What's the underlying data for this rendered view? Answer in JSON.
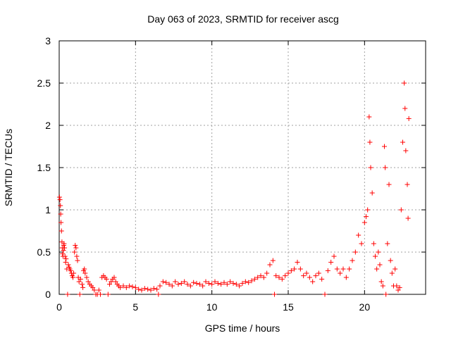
{
  "chart_data": {
    "type": "scatter",
    "title": "Day 063 of 2023, SRMTID for receiver ascg",
    "xlabel": "GPS time / hours",
    "ylabel": "SRMTID / TECUs",
    "xlim": [
      0,
      24
    ],
    "ylim": [
      0,
      3
    ],
    "xticks": [
      0,
      5,
      10,
      15,
      20
    ],
    "yticks": [
      0,
      0.5,
      1,
      1.5,
      2,
      2.5,
      3
    ],
    "ytick_labels": [
      "0",
      "0.5",
      "1",
      "1.5",
      "2",
      "2.5",
      "3"
    ],
    "xtick_labels": [
      "0",
      "5",
      "10",
      "15",
      "20"
    ],
    "grid": true,
    "marker": "+",
    "color": "#ff0000",
    "series": [
      {
        "name": "SRMTID",
        "points": [
          [
            0.02,
            1.15
          ],
          [
            0.05,
            1.12
          ],
          [
            0.08,
            1.05
          ],
          [
            0.1,
            0.95
          ],
          [
            0.12,
            0.85
          ],
          [
            0.15,
            0.75
          ],
          [
            0.18,
            0.62
          ],
          [
            0.2,
            0.55
          ],
          [
            0.22,
            0.48
          ],
          [
            0.25,
            0.45
          ],
          [
            0.28,
            0.52
          ],
          [
            0.3,
            0.58
          ],
          [
            0.32,
            0.6
          ],
          [
            0.35,
            0.55
          ],
          [
            0.38,
            0.45
          ],
          [
            0.42,
            0.38
          ],
          [
            0.45,
            0.42
          ],
          [
            0.5,
            0.3
          ],
          [
            0.55,
            0.0
          ],
          [
            0.6,
            0.35
          ],
          [
            0.65,
            0.32
          ],
          [
            0.7,
            0.3
          ],
          [
            0.75,
            0.28
          ],
          [
            0.8,
            0.25
          ],
          [
            0.85,
            0.22
          ],
          [
            0.9,
            0.2
          ],
          [
            0.95,
            0.25
          ],
          [
            1.0,
            0.5
          ],
          [
            1.05,
            0.58
          ],
          [
            1.1,
            0.55
          ],
          [
            1.15,
            0.45
          ],
          [
            1.2,
            0.4
          ],
          [
            1.25,
            0.2
          ],
          [
            1.3,
            0.15
          ],
          [
            1.35,
            0.0
          ],
          [
            1.4,
            0.18
          ],
          [
            1.5,
            0.12
          ],
          [
            1.55,
            0.08
          ],
          [
            1.6,
            0.28
          ],
          [
            1.65,
            0.3
          ],
          [
            1.7,
            0.25
          ],
          [
            1.8,
            0.2
          ],
          [
            1.9,
            0.15
          ],
          [
            2.0,
            0.12
          ],
          [
            2.1,
            0.1
          ],
          [
            2.2,
            0.08
          ],
          [
            2.3,
            0.05
          ],
          [
            2.4,
            0.0
          ],
          [
            2.5,
            0.0
          ],
          [
            2.6,
            0.05
          ],
          [
            2.7,
            0.0
          ],
          [
            2.8,
            0.2
          ],
          [
            2.9,
            0.22
          ],
          [
            3.0,
            0.2
          ],
          [
            3.1,
            0.18
          ],
          [
            3.2,
            0.0
          ],
          [
            3.3,
            0.12
          ],
          [
            3.4,
            0.15
          ],
          [
            3.5,
            0.18
          ],
          [
            3.6,
            0.2
          ],
          [
            3.7,
            0.15
          ],
          [
            3.8,
            0.12
          ],
          [
            3.9,
            0.1
          ],
          [
            4.0,
            0.08
          ],
          [
            4.2,
            0.1
          ],
          [
            4.4,
            0.08
          ],
          [
            4.6,
            0.1
          ],
          [
            4.8,
            0.09
          ],
          [
            5.0,
            0.08
          ],
          [
            5.2,
            0.06
          ],
          [
            5.4,
            0.05
          ],
          [
            5.6,
            0.07
          ],
          [
            5.8,
            0.06
          ],
          [
            6.0,
            0.05
          ],
          [
            6.2,
            0.07
          ],
          [
            6.4,
            0.06
          ],
          [
            6.5,
            0.0
          ],
          [
            6.6,
            0.1
          ],
          [
            6.8,
            0.15
          ],
          [
            7.0,
            0.14
          ],
          [
            7.2,
            0.12
          ],
          [
            7.4,
            0.1
          ],
          [
            7.6,
            0.15
          ],
          [
            7.8,
            0.12
          ],
          [
            8.0,
            0.13
          ],
          [
            8.2,
            0.15
          ],
          [
            8.4,
            0.12
          ],
          [
            8.6,
            0.1
          ],
          [
            8.8,
            0.14
          ],
          [
            9.0,
            0.13
          ],
          [
            9.2,
            0.12
          ],
          [
            9.4,
            0.1
          ],
          [
            9.6,
            0.15
          ],
          [
            9.8,
            0.13
          ],
          [
            10.0,
            0.12
          ],
          [
            10.2,
            0.15
          ],
          [
            10.4,
            0.13
          ],
          [
            10.6,
            0.12
          ],
          [
            10.8,
            0.14
          ],
          [
            11.0,
            0.12
          ],
          [
            11.2,
            0.15
          ],
          [
            11.4,
            0.13
          ],
          [
            11.6,
            0.12
          ],
          [
            11.8,
            0.1
          ],
          [
            12.0,
            0.13
          ],
          [
            12.2,
            0.15
          ],
          [
            12.4,
            0.14
          ],
          [
            12.6,
            0.16
          ],
          [
            12.8,
            0.18
          ],
          [
            13.0,
            0.2
          ],
          [
            13.2,
            0.22
          ],
          [
            13.4,
            0.2
          ],
          [
            13.6,
            0.25
          ],
          [
            13.8,
            0.35
          ],
          [
            14.0,
            0.4
          ],
          [
            14.1,
            0.0
          ],
          [
            14.2,
            0.22
          ],
          [
            14.4,
            0.2
          ],
          [
            14.6,
            0.18
          ],
          [
            14.8,
            0.22
          ],
          [
            15.0,
            0.25
          ],
          [
            15.2,
            0.28
          ],
          [
            15.4,
            0.3
          ],
          [
            15.6,
            0.38
          ],
          [
            15.8,
            0.3
          ],
          [
            16.0,
            0.22
          ],
          [
            16.2,
            0.25
          ],
          [
            16.4,
            0.2
          ],
          [
            16.6,
            0.15
          ],
          [
            16.8,
            0.22
          ],
          [
            17.0,
            0.25
          ],
          [
            17.2,
            0.18
          ],
          [
            17.4,
            0.0
          ],
          [
            17.6,
            0.28
          ],
          [
            17.8,
            0.38
          ],
          [
            18.0,
            0.45
          ],
          [
            18.2,
            0.3
          ],
          [
            18.4,
            0.25
          ],
          [
            18.6,
            0.3
          ],
          [
            18.8,
            0.2
          ],
          [
            19.0,
            0.3
          ],
          [
            19.2,
            0.4
          ],
          [
            19.4,
            0.5
          ],
          [
            19.6,
            0.7
          ],
          [
            19.8,
            0.6
          ],
          [
            20.0,
            0.85
          ],
          [
            20.1,
            0.92
          ],
          [
            20.2,
            1.0
          ],
          [
            20.3,
            2.1
          ],
          [
            20.35,
            1.8
          ],
          [
            20.4,
            1.5
          ],
          [
            20.5,
            1.2
          ],
          [
            20.6,
            0.6
          ],
          [
            20.7,
            0.45
          ],
          [
            20.8,
            0.3
          ],
          [
            20.9,
            0.5
          ],
          [
            21.0,
            0.35
          ],
          [
            21.1,
            0.15
          ],
          [
            21.2,
            0.1
          ],
          [
            21.3,
            1.75
          ],
          [
            21.35,
            1.5
          ],
          [
            21.4,
            0.0
          ],
          [
            21.5,
            0.6
          ],
          [
            21.6,
            1.3
          ],
          [
            21.7,
            0.4
          ],
          [
            21.8,
            0.25
          ],
          [
            21.9,
            0.1
          ],
          [
            22.0,
            0.3
          ],
          [
            22.1,
            0.1
          ],
          [
            22.2,
            0.05
          ],
          [
            22.3,
            0.08
          ],
          [
            22.4,
            1.0
          ],
          [
            22.5,
            1.8
          ],
          [
            22.6,
            2.5
          ],
          [
            22.65,
            2.2
          ],
          [
            22.7,
            1.7
          ],
          [
            22.8,
            1.3
          ],
          [
            22.85,
            0.9
          ],
          [
            22.9,
            2.08
          ]
        ]
      }
    ]
  }
}
